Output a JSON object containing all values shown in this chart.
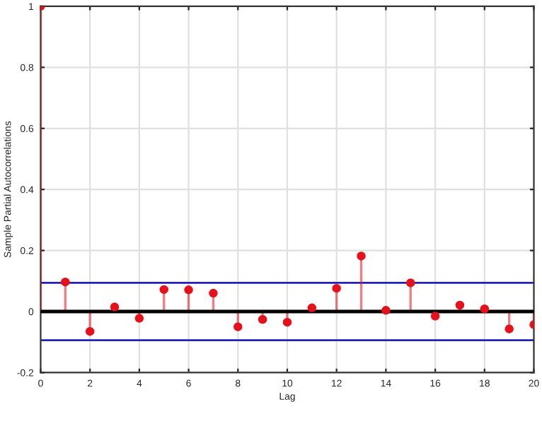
{
  "chart_data": {
    "type": "lollipop",
    "xlabel": "Lag",
    "ylabel": "Sample Partial Autocorrelations",
    "x": [
      0,
      1,
      2,
      3,
      4,
      5,
      6,
      7,
      8,
      9,
      10,
      11,
      12,
      13,
      14,
      15,
      16,
      17,
      18,
      19,
      20
    ],
    "values": [
      1,
      0.097,
      -0.065,
      0.015,
      -0.022,
      0.072,
      0.071,
      0.06,
      -0.05,
      -0.026,
      -0.035,
      0.012,
      0.076,
      0.182,
      0.004,
      0.094,
      -0.015,
      0.021,
      0.009,
      -0.057,
      -0.043
    ],
    "color": "#e8101a",
    "marker": "circle",
    "xlim": [
      0,
      20
    ],
    "xticks": [
      0,
      2,
      4,
      6,
      8,
      10,
      12,
      14,
      16,
      18,
      20
    ],
    "ylim": [
      -0.2,
      1
    ],
    "yticks": [
      -0.2,
      0,
      0.2,
      0.4,
      0.6,
      0.8,
      1
    ],
    "ref_lines": [
      {
        "axis": "y",
        "value": 0,
        "color": "#000000"
      },
      {
        "axis": "y",
        "value": 0.094,
        "color": "#2020c0"
      },
      {
        "axis": "y",
        "value": -0.094,
        "color": "#2020c0"
      }
    ],
    "grid": true,
    "legend": false
  }
}
